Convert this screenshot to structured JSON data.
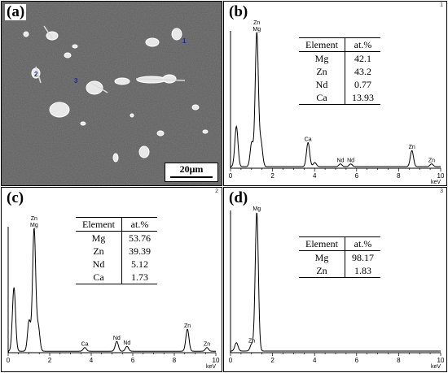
{
  "panels": {
    "a": {
      "label": "(a)",
      "scale_bar": "20μm",
      "markers": [
        "1",
        "2",
        "3"
      ]
    },
    "b": {
      "label": "(b)",
      "spectrum_number": "1",
      "table": {
        "headers": [
          "Element",
          "at.%"
        ],
        "rows": [
          [
            "Mg",
            "42.1"
          ],
          [
            "Zn",
            "43.2"
          ],
          [
            "Nd",
            "0.77"
          ],
          [
            "Ca",
            "13.93"
          ]
        ]
      }
    },
    "c": {
      "label": "(c)",
      "spectrum_number": "2",
      "table": {
        "headers": [
          "Element",
          "at.%"
        ],
        "rows": [
          [
            "Mg",
            "53.76"
          ],
          [
            "Zn",
            "39.39"
          ],
          [
            "Nd",
            "5.12"
          ],
          [
            "Ca",
            "1.73"
          ]
        ]
      }
    },
    "d": {
      "label": "(d)",
      "spectrum_number": "3",
      "table": {
        "headers": [
          "Element",
          "at.%"
        ],
        "rows": [
          [
            "Mg",
            "98.17"
          ],
          [
            "Zn",
            "1.83"
          ]
        ]
      }
    }
  },
  "chart_data": [
    {
      "type": "line",
      "panel": "b",
      "xlabel": "keV",
      "xlim": [
        0,
        10
      ],
      "x_ticks": [
        "0",
        "2",
        "4",
        "6",
        "8",
        "10"
      ],
      "peaks": [
        {
          "energy": 0.28,
          "height": 0.3,
          "label": ""
        },
        {
          "energy": 1.01,
          "height": 0.18,
          "label": ""
        },
        {
          "energy": 1.25,
          "height": 1.0,
          "label": "Zn\nMg"
        },
        {
          "energy": 1.45,
          "height": 0.18,
          "label": ""
        },
        {
          "energy": 3.69,
          "height": 0.18,
          "label": "Ca"
        },
        {
          "energy": 4.01,
          "height": 0.03,
          "label": ""
        },
        {
          "energy": 5.23,
          "height": 0.02,
          "label": "Nd"
        },
        {
          "energy": 5.72,
          "height": 0.02,
          "label": "Nd"
        },
        {
          "energy": 8.63,
          "height": 0.12,
          "label": "Zn"
        },
        {
          "energy": 9.57,
          "height": 0.02,
          "label": "Zn"
        }
      ]
    },
    {
      "type": "line",
      "panel": "c",
      "xlabel": "keV",
      "xlim": [
        0,
        10
      ],
      "x_ticks": [
        "0",
        "2",
        "4",
        "6",
        "8",
        "10"
      ],
      "peaks": [
        {
          "energy": 0.28,
          "height": 0.52,
          "label": ""
        },
        {
          "energy": 1.01,
          "height": 0.25,
          "label": ""
        },
        {
          "energy": 1.25,
          "height": 1.0,
          "label": "Zn\nMg"
        },
        {
          "energy": 1.45,
          "height": 0.2,
          "label": ""
        },
        {
          "energy": 3.69,
          "height": 0.03,
          "label": "Ca"
        },
        {
          "energy": 5.23,
          "height": 0.08,
          "label": "Nd"
        },
        {
          "energy": 5.72,
          "height": 0.04,
          "label": "Nd"
        },
        {
          "energy": 8.63,
          "height": 0.18,
          "label": "Zn"
        },
        {
          "energy": 9.57,
          "height": 0.03,
          "label": "Zn"
        }
      ]
    },
    {
      "type": "line",
      "panel": "d",
      "xlabel": "keV",
      "xlim": [
        0,
        10
      ],
      "x_ticks": [
        "0",
        "2",
        "4",
        "6",
        "8",
        "10"
      ],
      "peaks": [
        {
          "energy": 0.28,
          "height": 0.06,
          "label": ""
        },
        {
          "energy": 1.01,
          "height": 0.05,
          "label": "Zn"
        },
        {
          "energy": 1.25,
          "height": 1.0,
          "label": "Mg"
        }
      ]
    }
  ]
}
